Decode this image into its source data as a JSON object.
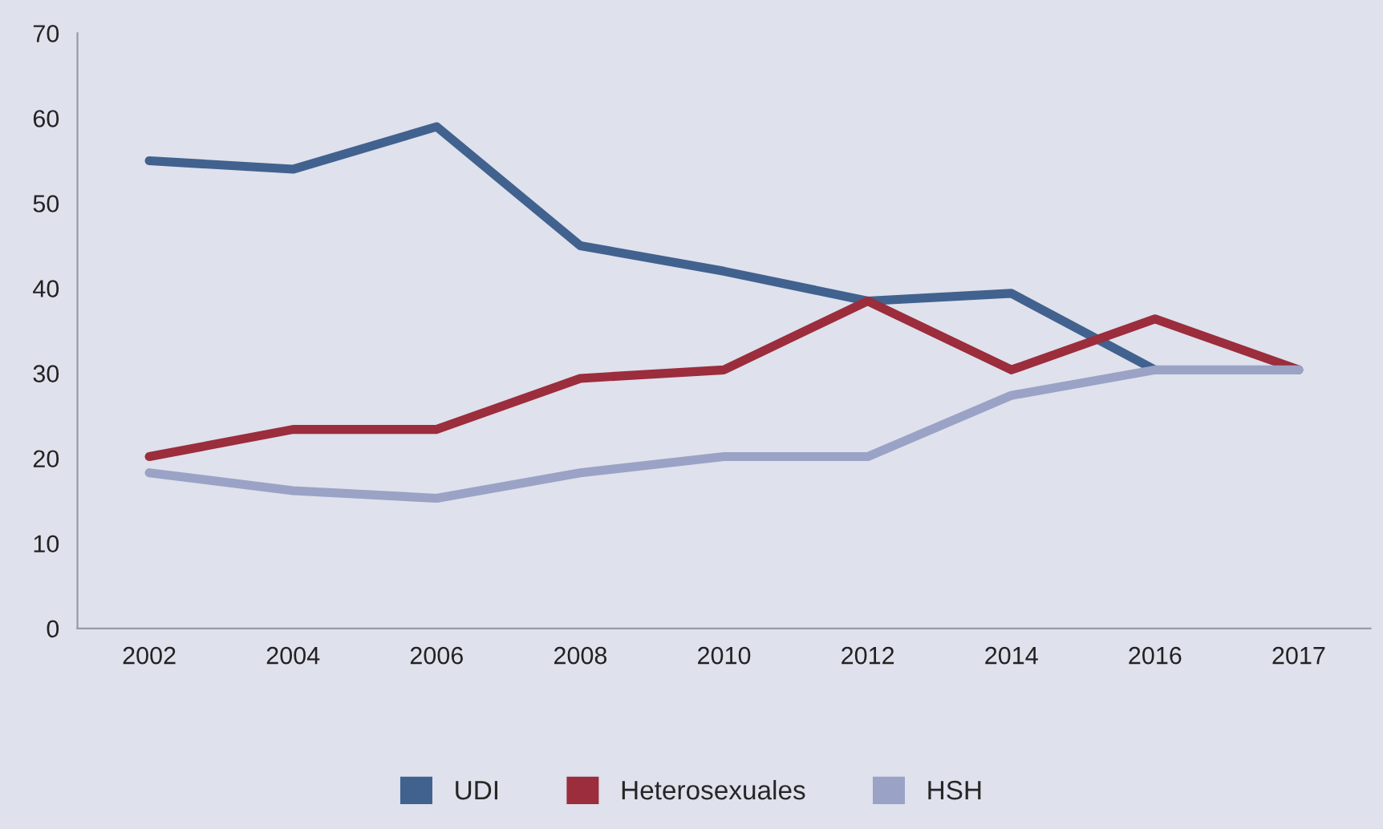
{
  "chart_data": {
    "type": "line",
    "categories": [
      "2002",
      "2004",
      "2006",
      "2008",
      "2010",
      "2012",
      "2014",
      "2016",
      "2017"
    ],
    "series": [
      {
        "name": "UDI",
        "color": "#41628f",
        "values": [
          55,
          54,
          59,
          45,
          42,
          38.5,
          39.4,
          30.4,
          null
        ]
      },
      {
        "name": "Heterosexuales",
        "color": "#9b2d3c",
        "values": [
          20.2,
          23.4,
          23.4,
          29.4,
          30.4,
          38.5,
          30.4,
          36.4,
          30.4
        ]
      },
      {
        "name": "HSH",
        "color": "#9aa3c6",
        "values": [
          18.3,
          16.2,
          15.3,
          18.3,
          20.2,
          20.2,
          27.4,
          30.4,
          30.4
        ]
      }
    ],
    "ylim": [
      0,
      70
    ],
    "yticks": [
      0,
      10,
      20,
      30,
      40,
      50,
      60,
      70
    ],
    "grid": false,
    "legend": "bottom",
    "marker": "none",
    "line_style": "solid"
  }
}
